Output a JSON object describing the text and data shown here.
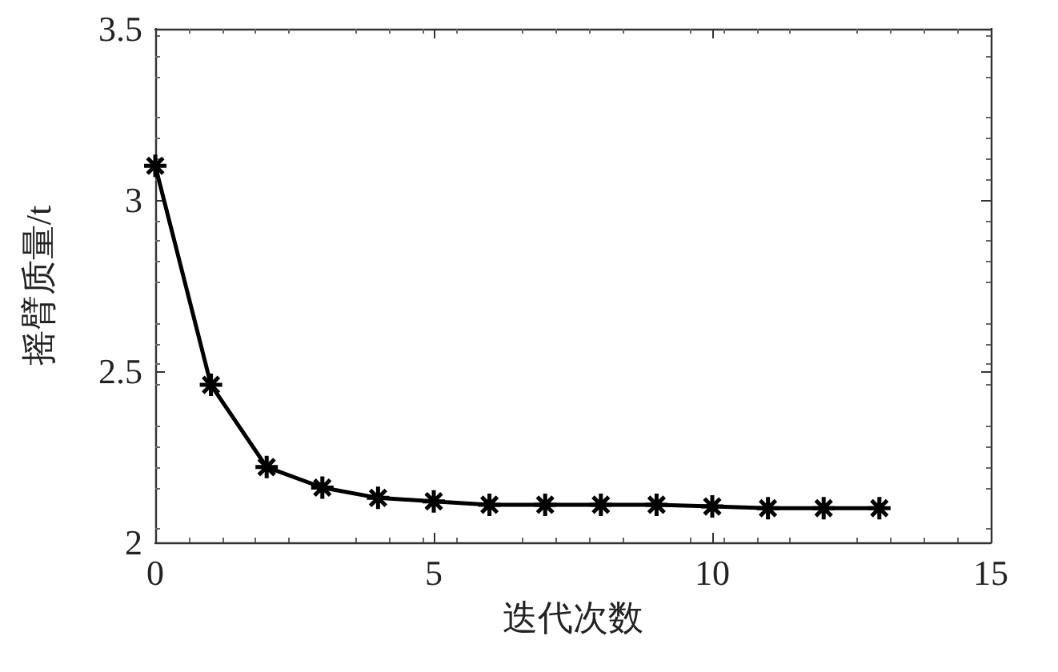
{
  "chart_data": {
    "type": "line",
    "xlabel": "迭代次数",
    "ylabel": "摇臂质量/t",
    "x": [
      0,
      1,
      2,
      3,
      4,
      5,
      6,
      7,
      8,
      9,
      10,
      11,
      12,
      13
    ],
    "series": [
      {
        "color": "#000000",
        "values": [
          3.1,
          2.46,
          2.22,
          2.16,
          2.13,
          2.12,
          2.11,
          2.11,
          2.11,
          2.11,
          2.105,
          2.1,
          2.1,
          2.1
        ]
      }
    ],
    "xlim": [
      0,
      15
    ],
    "xticks": [
      0,
      5,
      10,
      15
    ],
    "ylim": [
      2,
      3.5
    ],
    "yticks": [
      2,
      2.5,
      3,
      3.5
    ],
    "marker": "cross",
    "line_style": "solid",
    "grid": false
  }
}
